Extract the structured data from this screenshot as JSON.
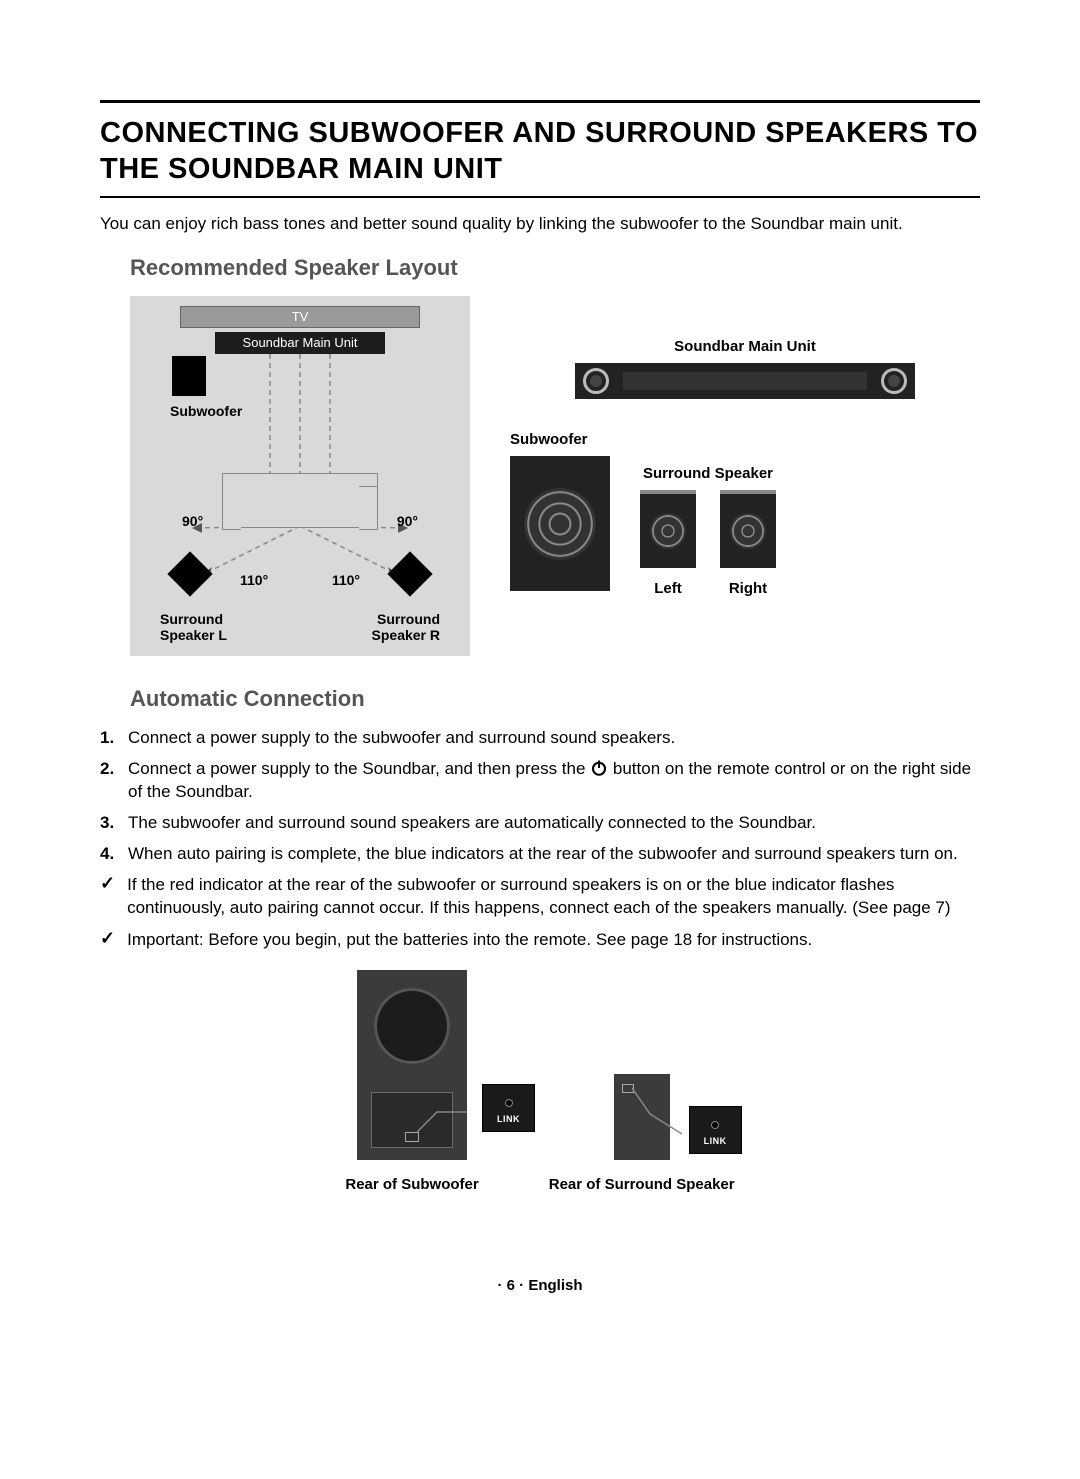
{
  "title": "CONNECTING SUBWOOFER AND SURROUND SPEAKERS TO THE SOUNDBAR MAIN UNIT",
  "intro": "You can enjoy rich bass tones and better sound quality by linking the subwoofer to the Soundbar main unit.",
  "layout_heading": "Recommended Speaker Layout",
  "room": {
    "tv": "TV",
    "soundbar": "Soundbar Main Unit",
    "subwoofer": "Subwoofer",
    "angle_90": "90°",
    "angle_110": "110°",
    "surround_l": "Surround\nSpeaker L",
    "surround_r": "Surround\nSpeaker R",
    "bg_color": "#d9d9d9"
  },
  "equip": {
    "soundbar_label": "Soundbar Main Unit",
    "subwoofer_label": "Subwoofer",
    "surround_label": "Surround Speaker",
    "left": "Left",
    "right": "Right"
  },
  "auto_heading": "Automatic Connection",
  "steps": [
    "Connect a power supply to the subwoofer and surround sound speakers.",
    "Connect a power supply to the Soundbar, and then press the |PWR| button on the remote control or on the right side of the Soundbar.",
    "The subwoofer and surround sound speakers are automatically connected to the Soundbar.",
    "When auto pairing is complete, the blue indicators at the rear of the subwoofer and surround speakers turn on."
  ],
  "checks": [
    "If the red indicator at the rear of the subwoofer or surround speakers is on or the blue indicator flashes continuously, auto pairing cannot occur. If this happens, connect each of the speakers manually. (See page 7)",
    "Important: Before you begin, put the batteries into the remote. See page 18 for instructions."
  ],
  "link_label": "LINK",
  "rear_sub_label": "Rear of Subwoofer",
  "rear_surr_label": "Rear of Surround Speaker",
  "footer": "· 6 · English",
  "colors": {
    "heading_gray": "#555555",
    "dark": "#1d1d1d",
    "panel": "#3b3b3b"
  }
}
